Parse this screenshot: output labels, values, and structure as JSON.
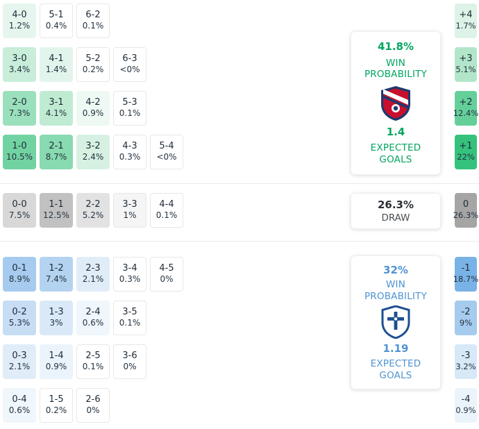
{
  "colors": {
    "home_accent": "#00a65f",
    "away_accent": "#4f93d2",
    "cell_text": "#1d2a36"
  },
  "chart_data": {
    "type": "heatmap",
    "title": "Correct score probability matrix with win/draw probabilities and expected goals",
    "sections": {
      "home": {
        "summary": {
          "win_probability": "41.8%",
          "win_probability_label": "WIN PROBABILITY",
          "expected_goals": "1.4",
          "expected_goals_label": "EXPECTED GOALS"
        },
        "matrix": [
          [
            {
              "score": "4-0",
              "pct": "1.2%",
              "bg": "#e6f6ee"
            },
            {
              "score": "5-1",
              "pct": "0.4%",
              "bg": "#ffffff",
              "border": true
            },
            {
              "score": "6-2",
              "pct": "0.1%",
              "bg": "#ffffff",
              "border": true
            }
          ],
          [
            {
              "score": "3-0",
              "pct": "3.4%",
              "bg": "#c8edd9"
            },
            {
              "score": "4-1",
              "pct": "1.4%",
              "bg": "#e2f5ec"
            },
            {
              "score": "5-2",
              "pct": "0.2%",
              "bg": "#ffffff",
              "border": true
            },
            {
              "score": "6-3",
              "pct": "<0%",
              "bg": "#ffffff",
              "border": true
            }
          ],
          [
            {
              "score": "2-0",
              "pct": "7.3%",
              "bg": "#9be0bd"
            },
            {
              "score": "3-1",
              "pct": "4.1%",
              "bg": "#c0ebd3"
            },
            {
              "score": "4-2",
              "pct": "0.9%",
              "bg": "#edf9f2"
            },
            {
              "score": "5-3",
              "pct": "0.1%",
              "bg": "#ffffff",
              "border": true
            }
          ],
          [
            {
              "score": "1-0",
              "pct": "10.5%",
              "bg": "#72d3a2"
            },
            {
              "score": "2-1",
              "pct": "8.7%",
              "bg": "#88dab0"
            },
            {
              "score": "3-2",
              "pct": "2.4%",
              "bg": "#d6f1e2"
            },
            {
              "score": "4-3",
              "pct": "0.3%",
              "bg": "#ffffff",
              "border": true
            },
            {
              "score": "5-4",
              "pct": "<0%",
              "bg": "#ffffff",
              "border": true
            }
          ]
        ],
        "goal_diff": [
          {
            "label": "+4",
            "pct": "1.7%",
            "bg": "#ddf3e8"
          },
          {
            "label": "+3",
            "pct": "5.1%",
            "bg": "#b2e6ca"
          },
          {
            "label": "+2",
            "pct": "12.4%",
            "bg": "#65cf9a"
          },
          {
            "label": "+1",
            "pct": "22%",
            "bg": "#35c27d"
          }
        ]
      },
      "draw": {
        "summary": {
          "probability": "26.3%",
          "label": "DRAW"
        },
        "matrix": [
          [
            {
              "score": "0-0",
              "pct": "7.5%",
              "bg": "#d8d8d8"
            },
            {
              "score": "1-1",
              "pct": "12.5%",
              "bg": "#c1c1c1"
            },
            {
              "score": "2-2",
              "pct": "5.2%",
              "bg": "#e2e2e2"
            },
            {
              "score": "3-3",
              "pct": "1%",
              "bg": "#f5f5f5",
              "border": true
            },
            {
              "score": "4-4",
              "pct": "0.1%",
              "bg": "#ffffff",
              "border": true
            }
          ]
        ],
        "goal_diff": [
          {
            "label": "0",
            "pct": "26.3%",
            "bg": "#a5a5a5"
          }
        ]
      },
      "away": {
        "summary": {
          "win_probability": "32%",
          "win_probability_label": "WIN PROBABILITY",
          "expected_goals": "1.19",
          "expected_goals_label": "EXPECTED GOALS"
        },
        "matrix": [
          [
            {
              "score": "0-1",
              "pct": "8.9%",
              "bg": "#a6cbee"
            },
            {
              "score": "1-2",
              "pct": "7.4%",
              "bg": "#b3d3f0"
            },
            {
              "score": "2-3",
              "pct": "2.1%",
              "bg": "#e0edf9"
            },
            {
              "score": "3-4",
              "pct": "0.3%",
              "bg": "#ffffff",
              "border": true
            },
            {
              "score": "4-5",
              "pct": "0%",
              "bg": "#ffffff",
              "border": true
            }
          ],
          [
            {
              "score": "0-2",
              "pct": "5.3%",
              "bg": "#c6ddf4"
            },
            {
              "score": "1-3",
              "pct": "3%",
              "bg": "#d9e9f8"
            },
            {
              "score": "2-4",
              "pct": "0.6%",
              "bg": "#eff6fc"
            },
            {
              "score": "3-5",
              "pct": "0.1%",
              "bg": "#ffffff",
              "border": true
            }
          ],
          [
            {
              "score": "0-3",
              "pct": "2.1%",
              "bg": "#e0edf9"
            },
            {
              "score": "1-4",
              "pct": "0.9%",
              "bg": "#ebf4fb"
            },
            {
              "score": "2-5",
              "pct": "0.1%",
              "bg": "#ffffff",
              "border": true
            },
            {
              "score": "3-6",
              "pct": "0%",
              "bg": "#ffffff",
              "border": true
            }
          ],
          [
            {
              "score": "0-4",
              "pct": "0.6%",
              "bg": "#eff6fc"
            },
            {
              "score": "1-5",
              "pct": "0.2%",
              "bg": "#ffffff",
              "border": true
            },
            {
              "score": "2-6",
              "pct": "0%",
              "bg": "#ffffff",
              "border": true
            }
          ]
        ],
        "goal_diff": [
          {
            "label": "-1",
            "pct": "18.7%",
            "bg": "#79b2e6"
          },
          {
            "label": "-2",
            "pct": "9%",
            "bg": "#a5cbee"
          },
          {
            "label": "-3",
            "pct": "3.2%",
            "bg": "#d7e8f7"
          },
          {
            "label": "-4",
            "pct": "0.9%",
            "bg": "#ebf4fb"
          }
        ]
      }
    }
  }
}
